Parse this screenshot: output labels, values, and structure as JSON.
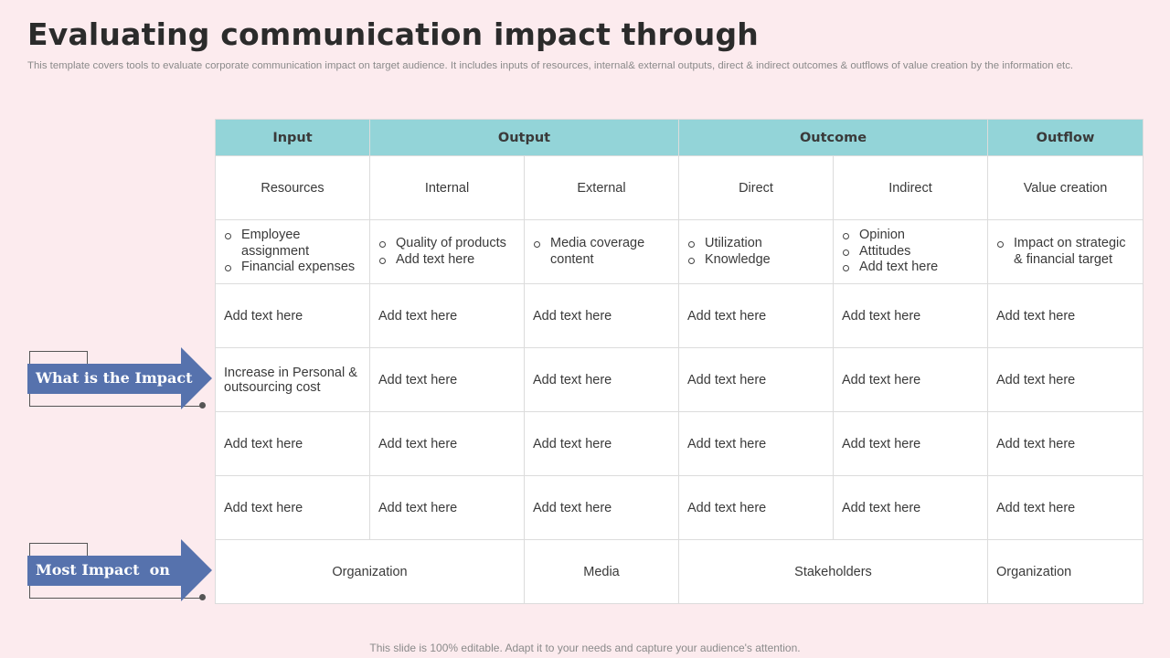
{
  "title": "Evaluating communication impact through",
  "subtitle": "This template covers tools to evaluate corporate communication impact on target audience. It includes inputs of resources, internal& external outputs, direct & indirect outcomes & outflows of value creation by the information etc.",
  "footer": "This slide is 100% editable. Adapt it to your needs and capture your audience's attention.",
  "colors": {
    "background": "#fcebee",
    "header": "#93d4d8",
    "arrow": "#5672ad"
  },
  "headers": [
    "Input",
    "Output",
    "Outcome",
    "Outflow"
  ],
  "subheaders": [
    "Resources",
    "Internal",
    "External",
    "Direct",
    "Indirect",
    "Value creation"
  ],
  "bullets": [
    [
      "Employee assignment",
      "Financial expenses"
    ],
    [
      "Quality of products",
      "Add text here"
    ],
    [
      "Media coverage content"
    ],
    [
      "Utilization",
      "Knowledge"
    ],
    [
      "Opinion",
      "Attitudes",
      "Add text here"
    ],
    [
      "Impact on strategic & financial target"
    ]
  ],
  "rows": [
    [
      "Add text here",
      "Add text here",
      "Add text here",
      "Add text here",
      "Add text here",
      "Add text here"
    ],
    [
      "Increase in Personal & outsourcing cost",
      "Add text here",
      "Add text here",
      "Add text here",
      "Add text here",
      "Add text here"
    ],
    [
      "Add text here",
      "Add text here",
      "Add text here",
      "Add text here",
      "Add text here",
      "Add text here"
    ],
    [
      "Add text here",
      "Add text here",
      "Add text here",
      "Add text here",
      "Add text here",
      "Add text here"
    ]
  ],
  "most_impact": [
    "Organization",
    "Media",
    "Stakeholders",
    "Organization"
  ],
  "arrows": {
    "impact": "What is the Impact",
    "most": "Most Impact  on"
  }
}
